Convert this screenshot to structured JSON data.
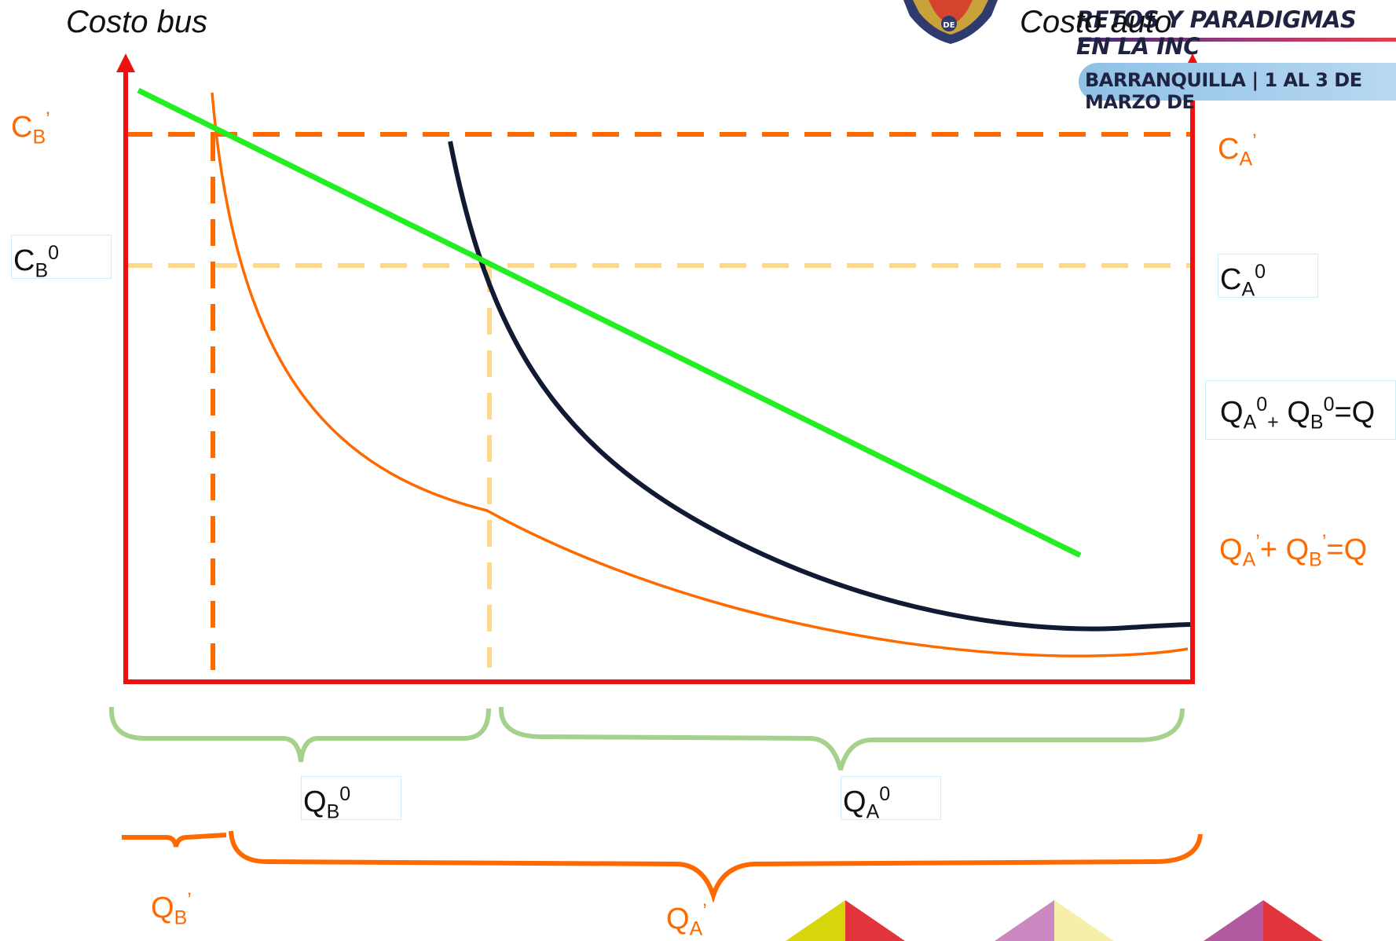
{
  "header": {
    "title": "RETOS Y PARADIGMAS EN LA INC",
    "subtitle": "BARRANQUILLA | 1 AL 3 DE MARZO DE",
    "logo_text": "DE"
  },
  "axes": {
    "left_title": "Costo bus",
    "right_title": "Costo auto"
  },
  "cost_labels": {
    "cb_prime": {
      "base": "C",
      "sub": "B",
      "sup": "’"
    },
    "cb_zero": {
      "base": "C",
      "sub": "B",
      "sup": "0"
    },
    "ca_prime": {
      "base": "C",
      "sub": "A",
      "sup": "’"
    },
    "ca_zero": {
      "base": "C",
      "sub": "A",
      "sup": "0"
    }
  },
  "legend": {
    "initial": {
      "q1": "Q",
      "q1_sub": "A",
      "q1_sup": "0",
      "plus": "+",
      "q2": "Q",
      "q2_sub": "B",
      "q2_sup": "0",
      "eq": "=Q"
    },
    "final": {
      "q1": "Q",
      "q1_sub": "A",
      "q1_sup": "’",
      "plus": "+ ",
      "q2": "Q",
      "q2_sub": "B",
      "q2_sup": "’",
      "eq": "=Q"
    }
  },
  "quantity_labels": {
    "qb_zero": {
      "base": "Q",
      "sub": "B",
      "sup": "0"
    },
    "qa_zero": {
      "base": "Q",
      "sub": "A",
      "sup": "0"
    },
    "qb_prime": {
      "base": "Q",
      "sub": "B",
      "sup": "’"
    },
    "qa_prime": {
      "base": "Q",
      "sub": "A",
      "sup": "’"
    }
  },
  "colors": {
    "axis": "#ee1111",
    "orange": "#ff6a00",
    "green": "#22ee22",
    "navy": "#111a33",
    "light_dash": "#ffd98a",
    "brace_green": "#a6d18d",
    "brace_orange": "#ff6a00",
    "text_dark": "#111111"
  }
}
